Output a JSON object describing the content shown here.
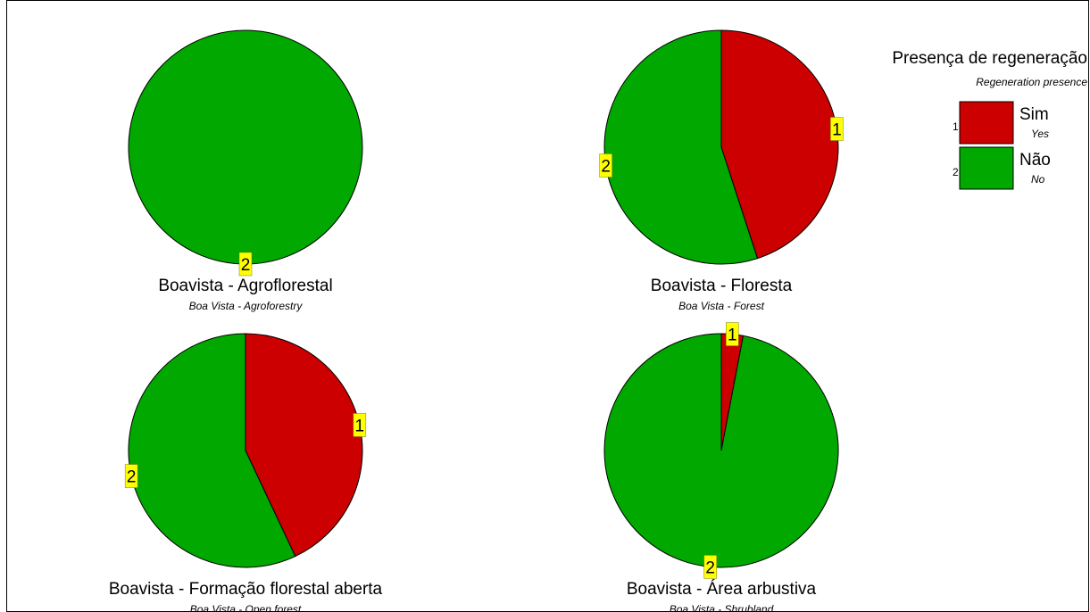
{
  "chart_data": [
    {
      "type": "pie",
      "title": "Boavista - Agroflorestal",
      "subtitle": "Boa Vista - Agroforestry",
      "slices": [
        {
          "code": "1",
          "value": 0
        },
        {
          "code": "2",
          "value": 100
        }
      ]
    },
    {
      "type": "pie",
      "title": "Boavista - Floresta",
      "subtitle": "Boa Vista - Forest",
      "slices": [
        {
          "code": "1",
          "value": 45
        },
        {
          "code": "2",
          "value": 55
        }
      ]
    },
    {
      "type": "pie",
      "title": "Boavista - Formação florestal aberta",
      "subtitle": "Boa Vista - Open forest",
      "slices": [
        {
          "code": "1",
          "value": 43
        },
        {
          "code": "2",
          "value": 57
        }
      ]
    },
    {
      "type": "pie",
      "title": "Boavista - Área arbustiva",
      "subtitle": "Boa Vista - Shrubland",
      "slices": [
        {
          "code": "1",
          "value": 3
        },
        {
          "code": "2",
          "value": 97
        }
      ]
    }
  ],
  "legend": {
    "title": "Presença de regeneração",
    "subtitle": "Regeneration presence",
    "items": [
      {
        "code": "1",
        "label": "Sim",
        "sublabel": "Yes",
        "color": "#cc0000"
      },
      {
        "code": "2",
        "label": "Não",
        "sublabel": "No",
        "color": "#00a800"
      }
    ]
  },
  "colors": {
    "1": "#cc0000",
    "2": "#00a800",
    "label_background": "#ffff00"
  }
}
